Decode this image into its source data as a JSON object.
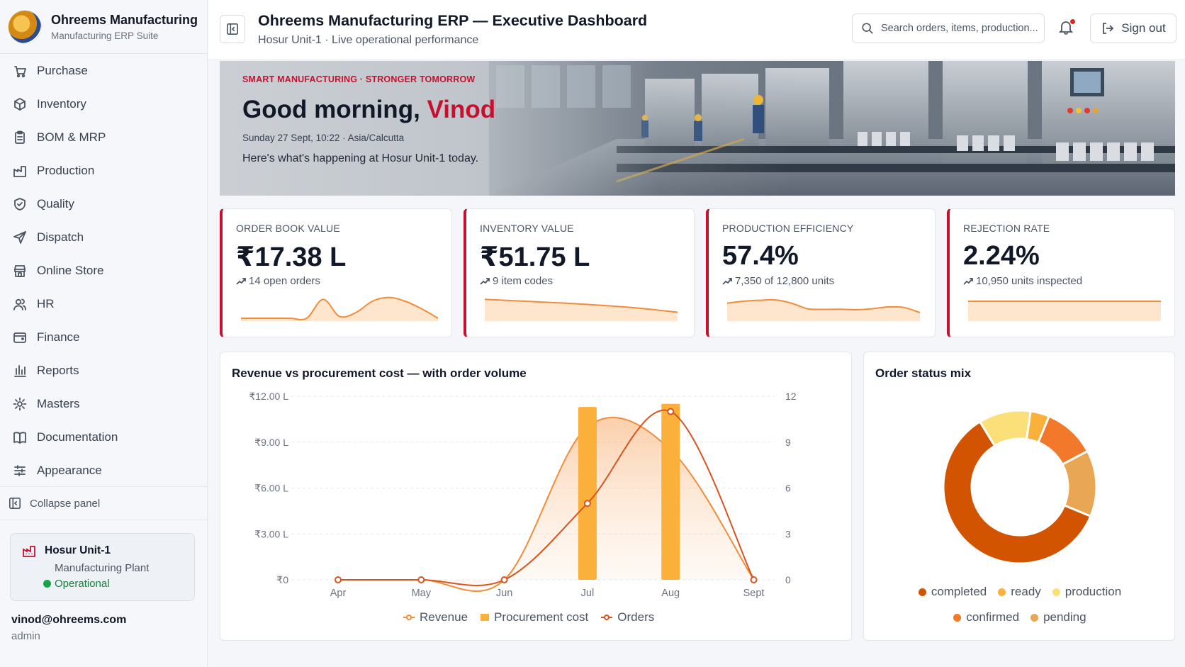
{
  "brand": {
    "title": "Ohreems Manufacturing",
    "subtitle": "Manufacturing ERP Suite"
  },
  "sidebar": {
    "items": [
      {
        "label": "Purchase",
        "icon": "purchase-icon"
      },
      {
        "label": "Inventory",
        "icon": "box-icon"
      },
      {
        "label": "BOM & MRP",
        "icon": "clipboard-icon"
      },
      {
        "label": "Production",
        "icon": "factory-icon"
      },
      {
        "label": "Quality",
        "icon": "shield-check-icon"
      },
      {
        "label": "Dispatch",
        "icon": "send-icon"
      },
      {
        "label": "Online Store",
        "icon": "store-icon"
      },
      {
        "label": "HR",
        "icon": "users-icon"
      },
      {
        "label": "Finance",
        "icon": "wallet-icon"
      },
      {
        "label": "Reports",
        "icon": "bar-chart-icon"
      },
      {
        "label": "Masters",
        "icon": "gear-icon"
      },
      {
        "label": "Documentation",
        "icon": "book-icon"
      },
      {
        "label": "Appearance",
        "icon": "sliders-icon"
      }
    ],
    "collapse_label": "Collapse panel",
    "unit": {
      "name": "Hosur Unit-1",
      "type": "Manufacturing Plant",
      "status": "Operational"
    },
    "user": {
      "email": "vinod@ohreems.com",
      "role": "admin"
    }
  },
  "header": {
    "title": "Ohreems Manufacturing ERP — Executive Dashboard",
    "subtitle": "Hosur Unit-1 · Live operational performance",
    "search_placeholder": "Search orders, items, production...",
    "signout_label": "Sign out"
  },
  "hero": {
    "tagline": "SMART MANUFACTURING · STRONGER TOMORROW",
    "greeting": "Good morning, ",
    "name": "Vinod",
    "datetime": "Sunday 27 Sept, 10:22 · Asia/Calcutta",
    "message": "Here's what's happening at Hosur Unit-1 today."
  },
  "kpis": [
    {
      "label": "ORDER BOOK VALUE",
      "value": "₹17.38 L",
      "sub": "14 open orders"
    },
    {
      "label": "INVENTORY VALUE",
      "value": "₹51.75 L",
      "sub": "9 item codes"
    },
    {
      "label": "PRODUCTION EFFICIENCY",
      "value": "57.4%",
      "sub": "7,350 of 12,800 units"
    },
    {
      "label": "REJECTION RATE",
      "value": "2.24%",
      "sub": "10,950 units inspected"
    }
  ],
  "sparklines": [
    [
      0,
      0,
      0,
      0,
      0,
      10,
      1,
      3,
      9,
      11,
      9,
      5,
      0
    ],
    [
      10,
      9.6,
      9.2,
      8.8,
      8.4,
      8,
      7.5,
      7,
      6.4,
      5.8,
      5,
      4.1,
      3.2
    ],
    [
      8,
      9,
      9.5,
      9.7,
      8,
      5,
      4.7,
      4.8,
      4.5,
      5,
      6,
      5.7,
      3
    ],
    [
      9,
      9,
      9,
      9,
      9,
      9,
      9,
      9,
      9,
      9,
      9,
      9,
      9
    ]
  ],
  "colors": {
    "accent": "#c8102e",
    "revenue": "#f28c38",
    "procurement": "#fbb03b",
    "orders": "#d9531e"
  },
  "chart_data": [
    {
      "type": "bar+line",
      "title": "Revenue vs procurement cost — with order volume",
      "categories": [
        "Apr",
        "May",
        "Jun",
        "Jul",
        "Aug",
        "Sept"
      ],
      "y_left_ticks": [
        "₹0",
        "₹3.00 L",
        "₹6.00 L",
        "₹9.00 L",
        "₹12.00 L"
      ],
      "y_right_ticks": [
        "0",
        "3",
        "6",
        "9",
        "12"
      ],
      "ylim_left": [
        0,
        12
      ],
      "ylim_right": [
        0,
        12
      ],
      "series": [
        {
          "name": "Revenue",
          "kind": "area",
          "values": [
            0,
            0,
            0,
            10,
            8.5,
            0
          ]
        },
        {
          "name": "Procurement cost",
          "kind": "bar",
          "values": [
            0,
            0,
            0,
            11.3,
            11.5,
            0
          ]
        },
        {
          "name": "Orders",
          "kind": "line",
          "axis": "right",
          "values": [
            0,
            0,
            0,
            5,
            11,
            0
          ]
        }
      ]
    },
    {
      "type": "pie",
      "title": "Order status mix",
      "slices": [
        {
          "name": "completed",
          "value": 60,
          "color": "#d35400"
        },
        {
          "name": "ready",
          "value": 4,
          "color": "#fbb03b"
        },
        {
          "name": "production",
          "value": 11,
          "color": "#fbe07a"
        },
        {
          "name": "confirmed",
          "value": 11,
          "color": "#f2782a"
        },
        {
          "name": "pending",
          "value": 14,
          "color": "#e9a654"
        }
      ],
      "legend_order": [
        "completed",
        "ready",
        "production",
        "confirmed",
        "pending"
      ]
    }
  ]
}
